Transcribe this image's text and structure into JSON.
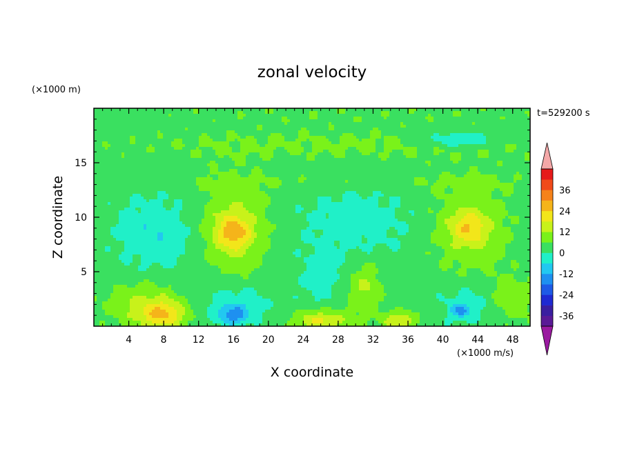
{
  "chart_data": {
    "type": "heatmap",
    "title": "zonal velocity",
    "xlabel": "X coordinate",
    "ylabel": "Z coordinate",
    "x_unit": "(×1000 m/s)",
    "y_unit": "(×1000 m)",
    "time_label": "t=529200 s",
    "xlim": [
      0,
      50
    ],
    "ylim": [
      0,
      20
    ],
    "x_ticks": [
      4,
      8,
      12,
      16,
      20,
      24,
      28,
      32,
      36,
      40,
      44,
      48
    ],
    "y_ticks": [
      5,
      10,
      15
    ],
    "colorbar": {
      "levels": [
        -42,
        -36,
        -30,
        -24,
        -18,
        -12,
        -6,
        0,
        6,
        12,
        18,
        24,
        30,
        36,
        42
      ],
      "colors": [
        "#5a1a96",
        "#3a1fa0",
        "#1f2ad2",
        "#1e5ae6",
        "#1e90f0",
        "#22c8f0",
        "#20f0c8",
        "#3ae060",
        "#7af21a",
        "#c8f21a",
        "#f2e61a",
        "#f5b41a",
        "#f5821a",
        "#f04a1a",
        "#e61a1a"
      ],
      "under_color": "#9a1aa0",
      "over_color": "#f4a8a8",
      "tick_labels": [
        "36",
        "24",
        "12",
        "0",
        "-12",
        "-24",
        "-36"
      ]
    },
    "field": {
      "background": 3,
      "features": [
        {
          "x": 30,
          "z": 19.6,
          "rx": 30,
          "rz": 1.0,
          "v": 2
        },
        {
          "x": 30,
          "z": 16.6,
          "rx": 30,
          "rz": 1.5,
          "v": 4
        },
        {
          "x": 30,
          "z": 13.2,
          "rx": 30,
          "rz": 0.8,
          "v": 3
        },
        {
          "x": 42,
          "z": 17.1,
          "rx": 4.0,
          "rz": 0.7,
          "v": -11
        },
        {
          "x": 7,
          "z": 8.5,
          "rx": 4.5,
          "rz": 3.5,
          "v": -8
        },
        {
          "x": 30,
          "z": 9.5,
          "rx": 7,
          "rz": 3.5,
          "v": -6
        },
        {
          "x": 16,
          "z": 9.0,
          "rx": 4.0,
          "rz": 4.5,
          "v": 10
        },
        {
          "x": 16,
          "z": 8.6,
          "rx": 2.0,
          "rz": 1.6,
          "v": 16
        },
        {
          "x": 43,
          "z": 9.0,
          "rx": 4.5,
          "rz": 4.0,
          "v": 9
        },
        {
          "x": 43,
          "z": 9.0,
          "rx": 2.0,
          "rz": 1.5,
          "v": 13
        },
        {
          "x": 6,
          "z": 2.0,
          "rx": 4.5,
          "rz": 2.2,
          "v": 10
        },
        {
          "x": 8,
          "z": 1.0,
          "rx": 2.5,
          "rz": 1.2,
          "v": 17
        },
        {
          "x": 16,
          "z": 2.0,
          "rx": 4.0,
          "rz": 2.0,
          "v": -8
        },
        {
          "x": 16,
          "z": 1.0,
          "rx": 1.5,
          "rz": 0.8,
          "v": -15
        },
        {
          "x": 26,
          "z": 4.2,
          "rx": 2.5,
          "rz": 2.5,
          "v": -6
        },
        {
          "x": 26,
          "z": 0.5,
          "rx": 3.0,
          "rz": 1.0,
          "v": 16
        },
        {
          "x": 31,
          "z": 3.5,
          "rx": 2.0,
          "rz": 2.5,
          "v": 10
        },
        {
          "x": 35,
          "z": 0.5,
          "rx": 1.8,
          "rz": 0.8,
          "v": 16
        },
        {
          "x": 43,
          "z": 2.0,
          "rx": 3.5,
          "rz": 2.0,
          "v": -6
        },
        {
          "x": 42,
          "z": 1.4,
          "rx": 1.0,
          "rz": 0.6,
          "v": -14
        },
        {
          "x": 48,
          "z": 2.5,
          "rx": 3.0,
          "rz": 2.0,
          "v": 8
        }
      ]
    }
  }
}
